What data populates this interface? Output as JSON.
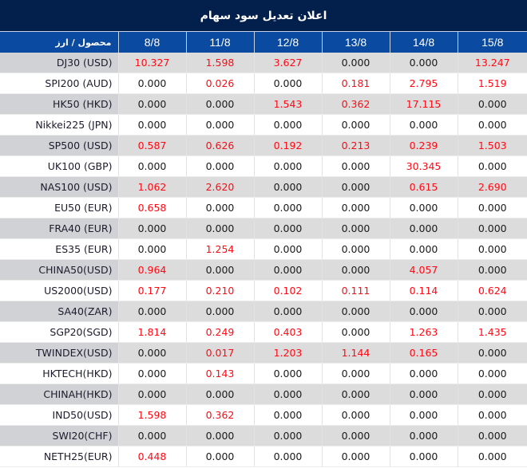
{
  "title": "اعلان تعدیل سود سهام",
  "header": {
    "label_column": "محصول / ارز",
    "dates": [
      "8/8",
      "11/8",
      "12/8",
      "13/8",
      "14/8",
      "15/8"
    ]
  },
  "colors": {
    "title_bg": "#031f4b",
    "header_bg": "#0a4aa0",
    "positive_value": "#ff0a14",
    "zero_value": "#1a1a1a",
    "row_shade": "#dcdcdc",
    "symbol_shade": "#d0d2d6"
  },
  "rows": [
    {
      "symbol": "DJ30 (USD)",
      "values": [
        "10.327",
        "1.598",
        "3.627",
        "0.000",
        "0.000",
        "13.247"
      ]
    },
    {
      "symbol": "SPI200 (AUD)",
      "values": [
        "0.000",
        "0.026",
        "0.000",
        "0.181",
        "2.795",
        "1.519"
      ]
    },
    {
      "symbol": "HK50 (HKD)",
      "values": [
        "0.000",
        "0.000",
        "1.543",
        "0.362",
        "17.115",
        "0.000"
      ]
    },
    {
      "symbol": "Nikkei225 (JPN)",
      "values": [
        "0.000",
        "0.000",
        "0.000",
        "0.000",
        "0.000",
        "0.000"
      ]
    },
    {
      "symbol": "SP500 (USD)",
      "values": [
        "0.587",
        "0.626",
        "0.192",
        "0.213",
        "0.239",
        "1.503"
      ]
    },
    {
      "symbol": "UK100 (GBP)",
      "values": [
        "0.000",
        "0.000",
        "0.000",
        "0.000",
        "30.345",
        "0.000"
      ]
    },
    {
      "symbol": "NAS100 (USD)",
      "values": [
        "1.062",
        "2.620",
        "0.000",
        "0.000",
        "0.615",
        "2.690"
      ]
    },
    {
      "symbol": "EU50 (EUR)",
      "values": [
        "0.658",
        "0.000",
        "0.000",
        "0.000",
        "0.000",
        "0.000"
      ]
    },
    {
      "symbol": "FRA40 (EUR)",
      "values": [
        "0.000",
        "0.000",
        "0.000",
        "0.000",
        "0.000",
        "0.000"
      ]
    },
    {
      "symbol": "ES35 (EUR)",
      "values": [
        "0.000",
        "1.254",
        "0.000",
        "0.000",
        "0.000",
        "0.000"
      ]
    },
    {
      "symbol": "CHINA50(USD)",
      "values": [
        "0.964",
        "0.000",
        "0.000",
        "0.000",
        "4.057",
        "0.000"
      ]
    },
    {
      "symbol": "US2000(USD)",
      "values": [
        "0.177",
        "0.210",
        "0.102",
        "0.111",
        "0.114",
        "0.624"
      ]
    },
    {
      "symbol": "SA40(ZAR)",
      "values": [
        "0.000",
        "0.000",
        "0.000",
        "0.000",
        "0.000",
        "0.000"
      ]
    },
    {
      "symbol": "SGP20(SGD)",
      "values": [
        "1.814",
        "0.249",
        "0.403",
        "0.000",
        "1.263",
        "1.435"
      ]
    },
    {
      "symbol": "TWINDEX(USD)",
      "values": [
        "0.000",
        "0.017",
        "1.203",
        "1.144",
        "0.165",
        "0.000"
      ]
    },
    {
      "symbol": "HKTECH(HKD)",
      "values": [
        "0.000",
        "0.143",
        "0.000",
        "0.000",
        "0.000",
        "0.000"
      ]
    },
    {
      "symbol": "CHINAH(HKD)",
      "values": [
        "0.000",
        "0.000",
        "0.000",
        "0.000",
        "0.000",
        "0.000"
      ]
    },
    {
      "symbol": "IND50(USD)",
      "values": [
        "1.598",
        "0.362",
        "0.000",
        "0.000",
        "0.000",
        "0.000"
      ]
    },
    {
      "symbol": "SWI20(CHF)",
      "values": [
        "0.000",
        "0.000",
        "0.000",
        "0.000",
        "0.000",
        "0.000"
      ]
    },
    {
      "symbol": "NETH25(EUR)",
      "values": [
        "0.448",
        "0.000",
        "0.000",
        "0.000",
        "0.000",
        "0.000"
      ]
    }
  ]
}
